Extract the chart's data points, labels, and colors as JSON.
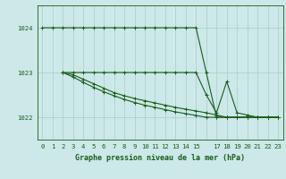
{
  "title": "Graphe pression niveau de la mer (hPa)",
  "bg_color": "#cce8e8",
  "grid_color": "#aacccc",
  "line_color": "#1a5c1a",
  "xlim": [
    -0.5,
    23.5
  ],
  "ylim": [
    1021.5,
    1024.5
  ],
  "yticks": [
    1022,
    1023,
    1024
  ],
  "xticks": [
    0,
    1,
    2,
    3,
    4,
    5,
    6,
    7,
    8,
    9,
    10,
    11,
    12,
    13,
    14,
    15,
    17,
    18,
    19,
    20,
    21,
    22,
    23
  ],
  "xticklabels": [
    "0",
    "1",
    "2",
    "3",
    "4",
    "5",
    "6",
    "7",
    "8",
    "9",
    "10",
    "11",
    "12",
    "13",
    "14",
    "15",
    "17",
    "18",
    "19",
    "20",
    "21",
    "22",
    "23"
  ],
  "series": [
    {
      "x": [
        0,
        1,
        2,
        3,
        4,
        5,
        6,
        7,
        8,
        9,
        10,
        11,
        12,
        13,
        14,
        15,
        16,
        17,
        18,
        19,
        20,
        21,
        22,
        23
      ],
      "y": [
        1024.0,
        1024.0,
        1024.0,
        1024.0,
        1024.0,
        1024.0,
        1024.0,
        1024.0,
        1024.0,
        1024.0,
        1024.0,
        1024.0,
        1024.0,
        1024.0,
        1024.0,
        1024.0,
        1023.0,
        1022.0,
        1022.0,
        1022.0,
        1022.0,
        1022.0,
        1022.0,
        1022.0
      ]
    },
    {
      "x": [
        2,
        3,
        4,
        5,
        6,
        7,
        8,
        9,
        10,
        11,
        12,
        13,
        14,
        15,
        16,
        17,
        18,
        19,
        20,
        21,
        22,
        23
      ],
      "y": [
        1023.0,
        1023.0,
        1023.0,
        1023.0,
        1023.0,
        1023.0,
        1023.0,
        1023.0,
        1023.0,
        1023.0,
        1023.0,
        1023.0,
        1023.0,
        1023.0,
        1022.5,
        1022.1,
        1022.8,
        1022.1,
        1022.05,
        1022.0,
        1022.0,
        1022.0
      ]
    },
    {
      "x": [
        2,
        3,
        4,
        5,
        6,
        7,
        8,
        9,
        10,
        11,
        12,
        13,
        14,
        15,
        16,
        17,
        18,
        19,
        20,
        21,
        22,
        23
      ],
      "y": [
        1023.0,
        1022.95,
        1022.85,
        1022.75,
        1022.65,
        1022.55,
        1022.48,
        1022.42,
        1022.37,
        1022.32,
        1022.27,
        1022.22,
        1022.18,
        1022.14,
        1022.1,
        1022.05,
        1022.0,
        1022.0,
        1022.0,
        1022.0,
        1022.0,
        1022.0
      ]
    },
    {
      "x": [
        2,
        3,
        4,
        5,
        6,
        7,
        8,
        9,
        10,
        11,
        12,
        13,
        14,
        15,
        16,
        17,
        18,
        19,
        20,
        21,
        22,
        23
      ],
      "y": [
        1023.0,
        1022.9,
        1022.78,
        1022.67,
        1022.57,
        1022.48,
        1022.4,
        1022.33,
        1022.27,
        1022.22,
        1022.17,
        1022.12,
        1022.08,
        1022.04,
        1022.0,
        1022.0,
        1022.0,
        1022.0,
        1022.0,
        1022.0,
        1022.0,
        1022.0
      ]
    }
  ],
  "marker_size": 3.0,
  "linewidth": 0.8,
  "tick_fontsize": 5.2,
  "label_fontsize": 6.0,
  "label_fontweight": "bold"
}
